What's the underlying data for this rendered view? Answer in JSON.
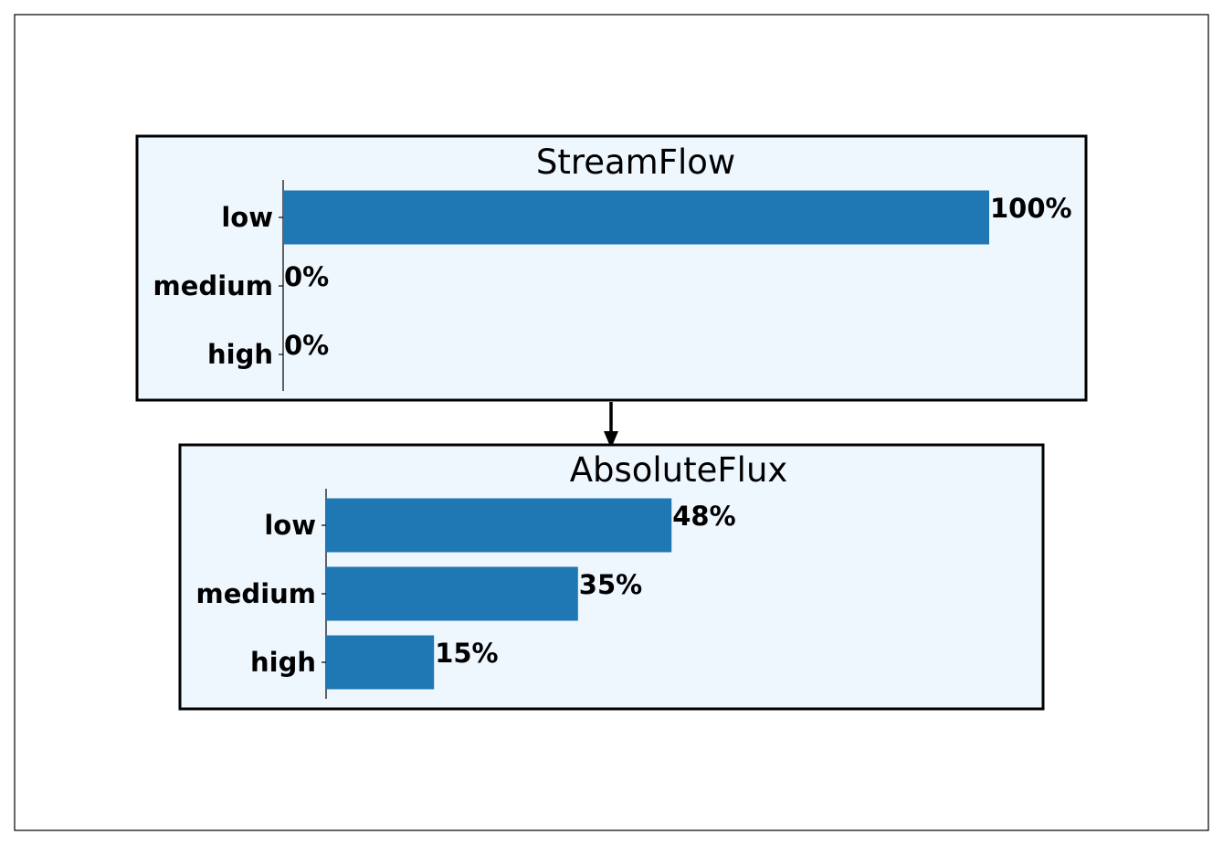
{
  "colors": {
    "bar": "#1f77b4",
    "panel_background": "#eef6fe",
    "panel_border": "#000000",
    "arrow": "#000000"
  },
  "chart_data": [
    {
      "type": "bar",
      "orientation": "horizontal",
      "title": "StreamFlow",
      "categories": [
        "low",
        "medium",
        "high"
      ],
      "values": [
        100,
        0,
        0
      ],
      "value_labels": [
        "100%",
        "0%",
        "0%"
      ],
      "xlim": [
        0,
        100
      ],
      "grid": false
    },
    {
      "type": "bar",
      "orientation": "horizontal",
      "title": "AbsoluteFlux",
      "categories": [
        "low",
        "medium",
        "high"
      ],
      "values": [
        48,
        35,
        15
      ],
      "value_labels": [
        "48%",
        "35%",
        "15%"
      ],
      "xlim": [
        0,
        100
      ],
      "grid": false
    }
  ],
  "edges": [
    {
      "from": "StreamFlow",
      "to": "AbsoluteFlux"
    }
  ]
}
